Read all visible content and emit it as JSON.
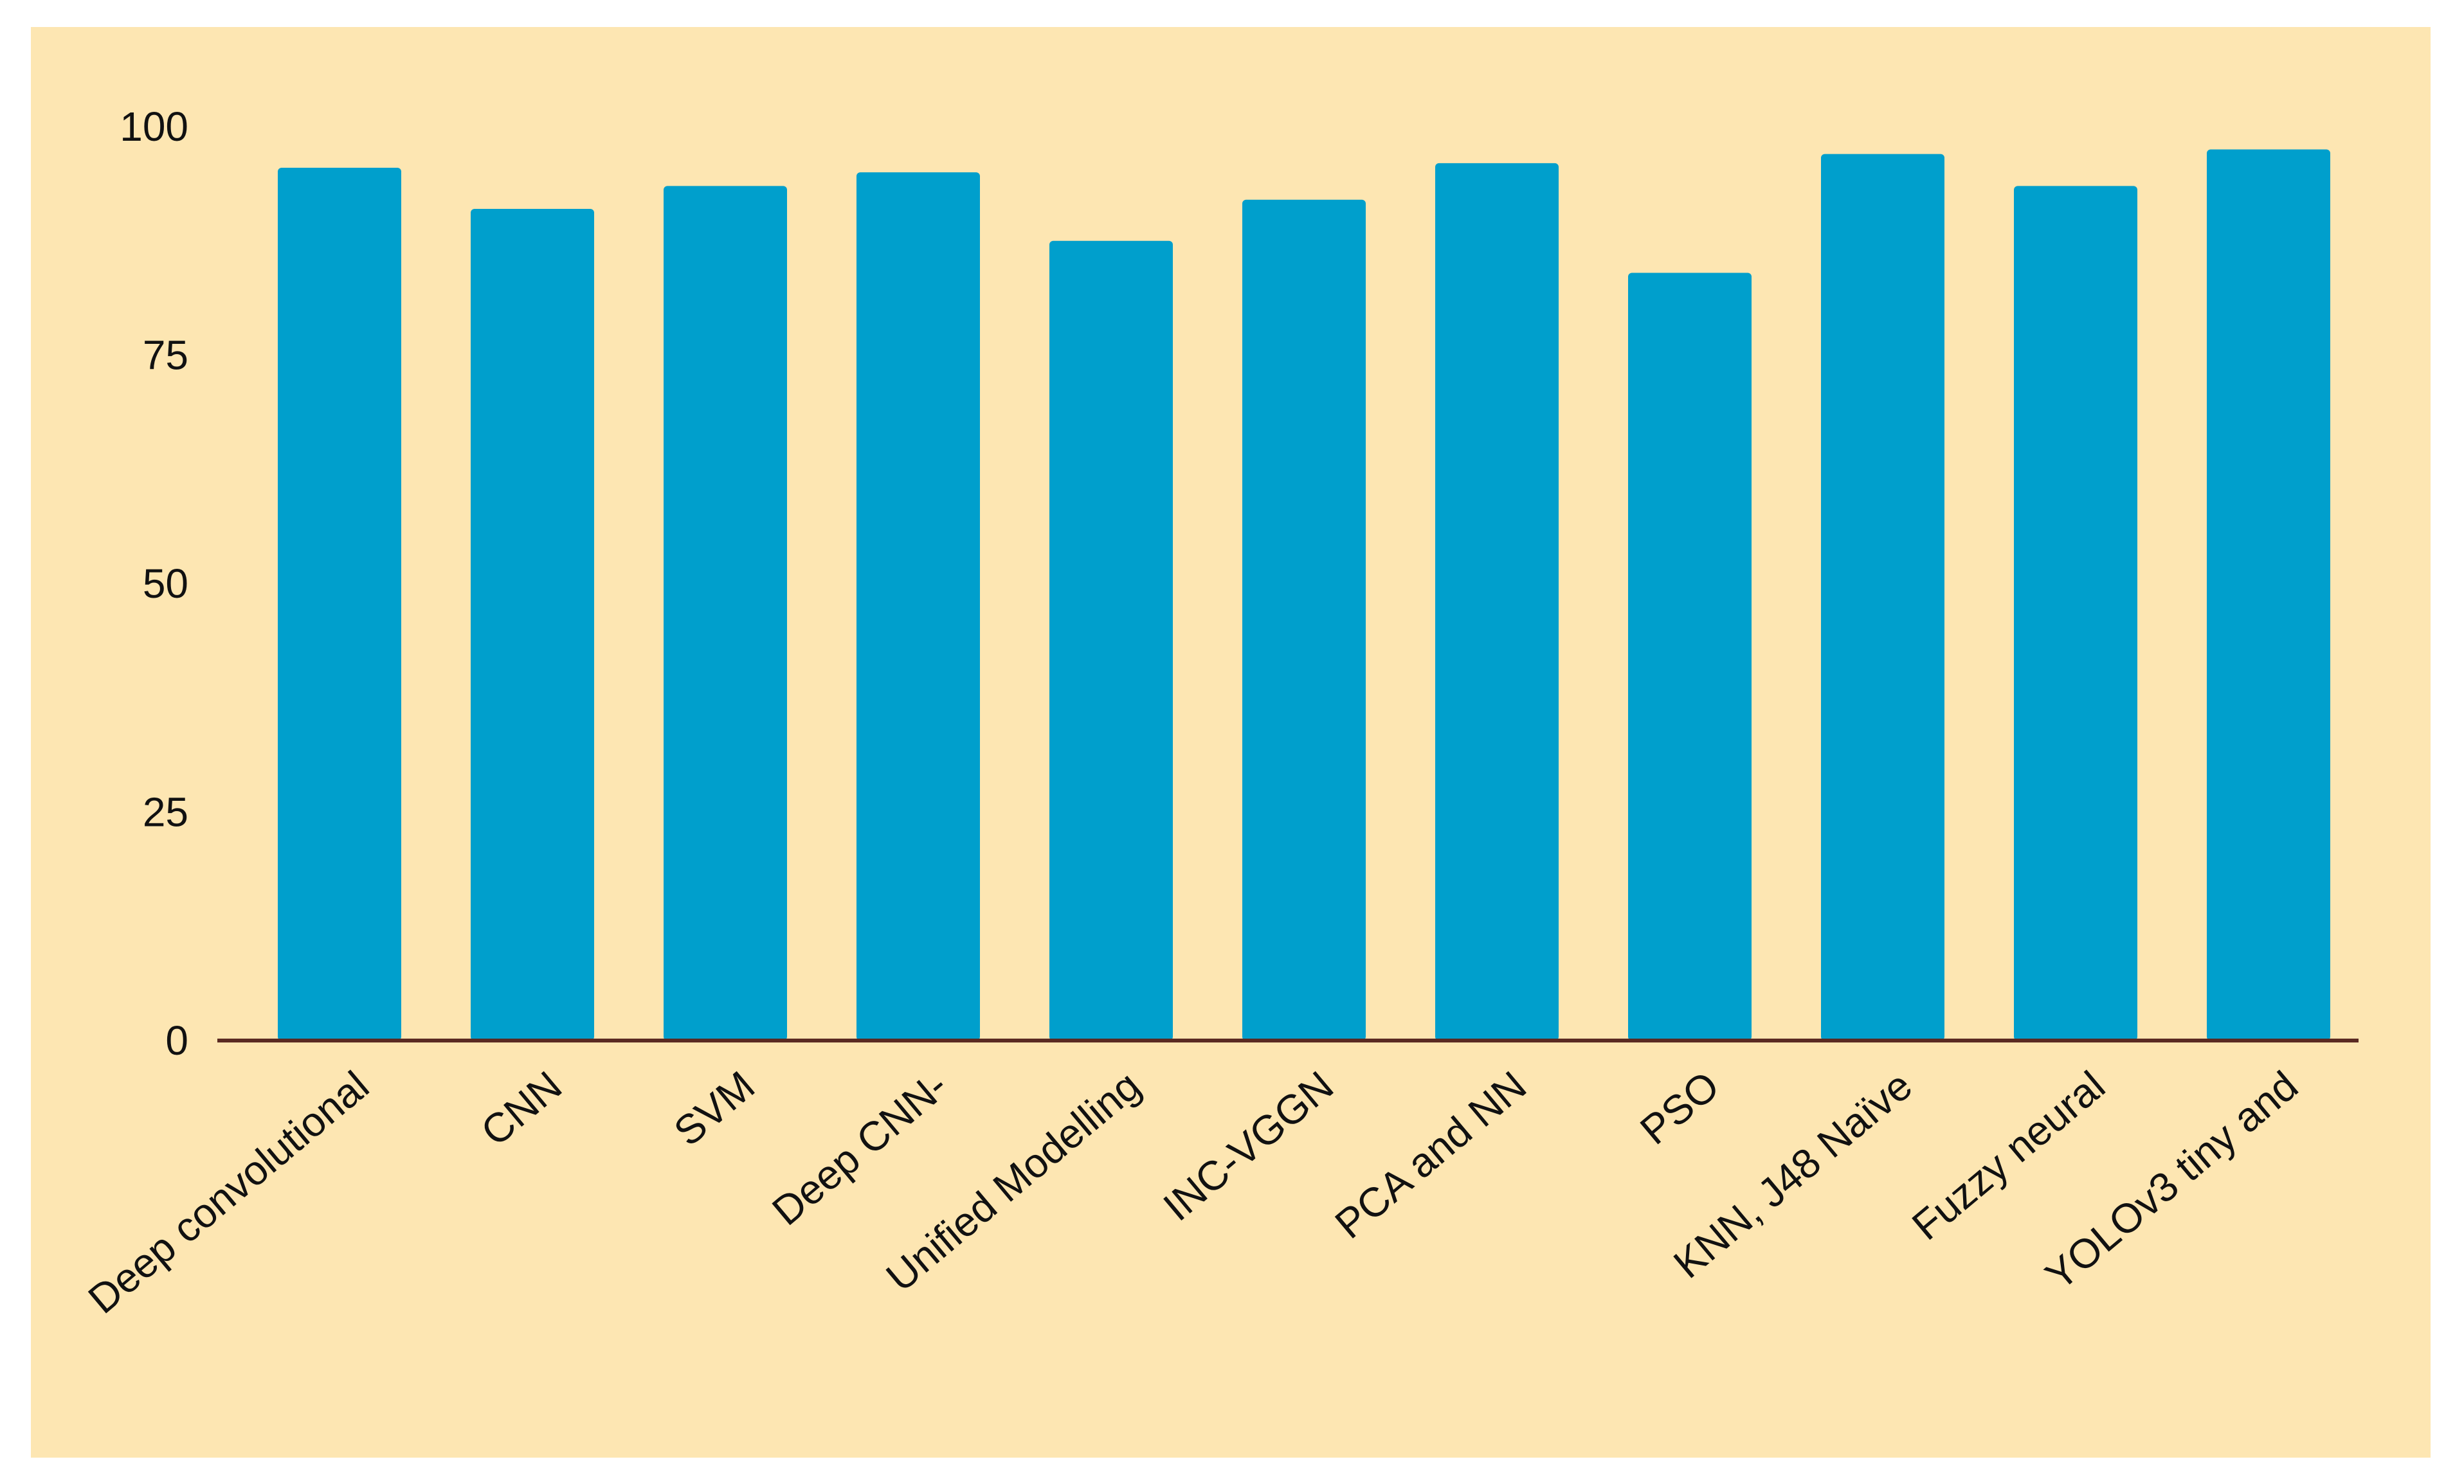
{
  "colors": {
    "panel_background": "#fde6b2",
    "bar": "#009fcc",
    "axis_line": "#5a2a22",
    "text": "#111111"
  },
  "chart_data": {
    "type": "bar",
    "title": "",
    "xlabel": "",
    "ylabel": "",
    "ylim": [
      0,
      100
    ],
    "yticks": [
      0,
      25,
      50,
      75,
      100
    ],
    "ytick_labels": [
      "0",
      "25",
      "50",
      "75",
      "100"
    ],
    "grid": false,
    "legend": "none",
    "categories": [
      "Deep convolutional",
      "CNN",
      "SVM",
      "Deep CNN-",
      "Unified Modelling",
      "INC-VGGN",
      "PCA and NN",
      "PSO",
      "KNN, J48 Naïve",
      "Fuzzy neural",
      "YOLOv3 tiny and"
    ],
    "values": [
      95.5,
      91,
      93.5,
      95,
      87.5,
      92,
      96,
      84,
      97,
      93.5,
      97.5
    ]
  }
}
